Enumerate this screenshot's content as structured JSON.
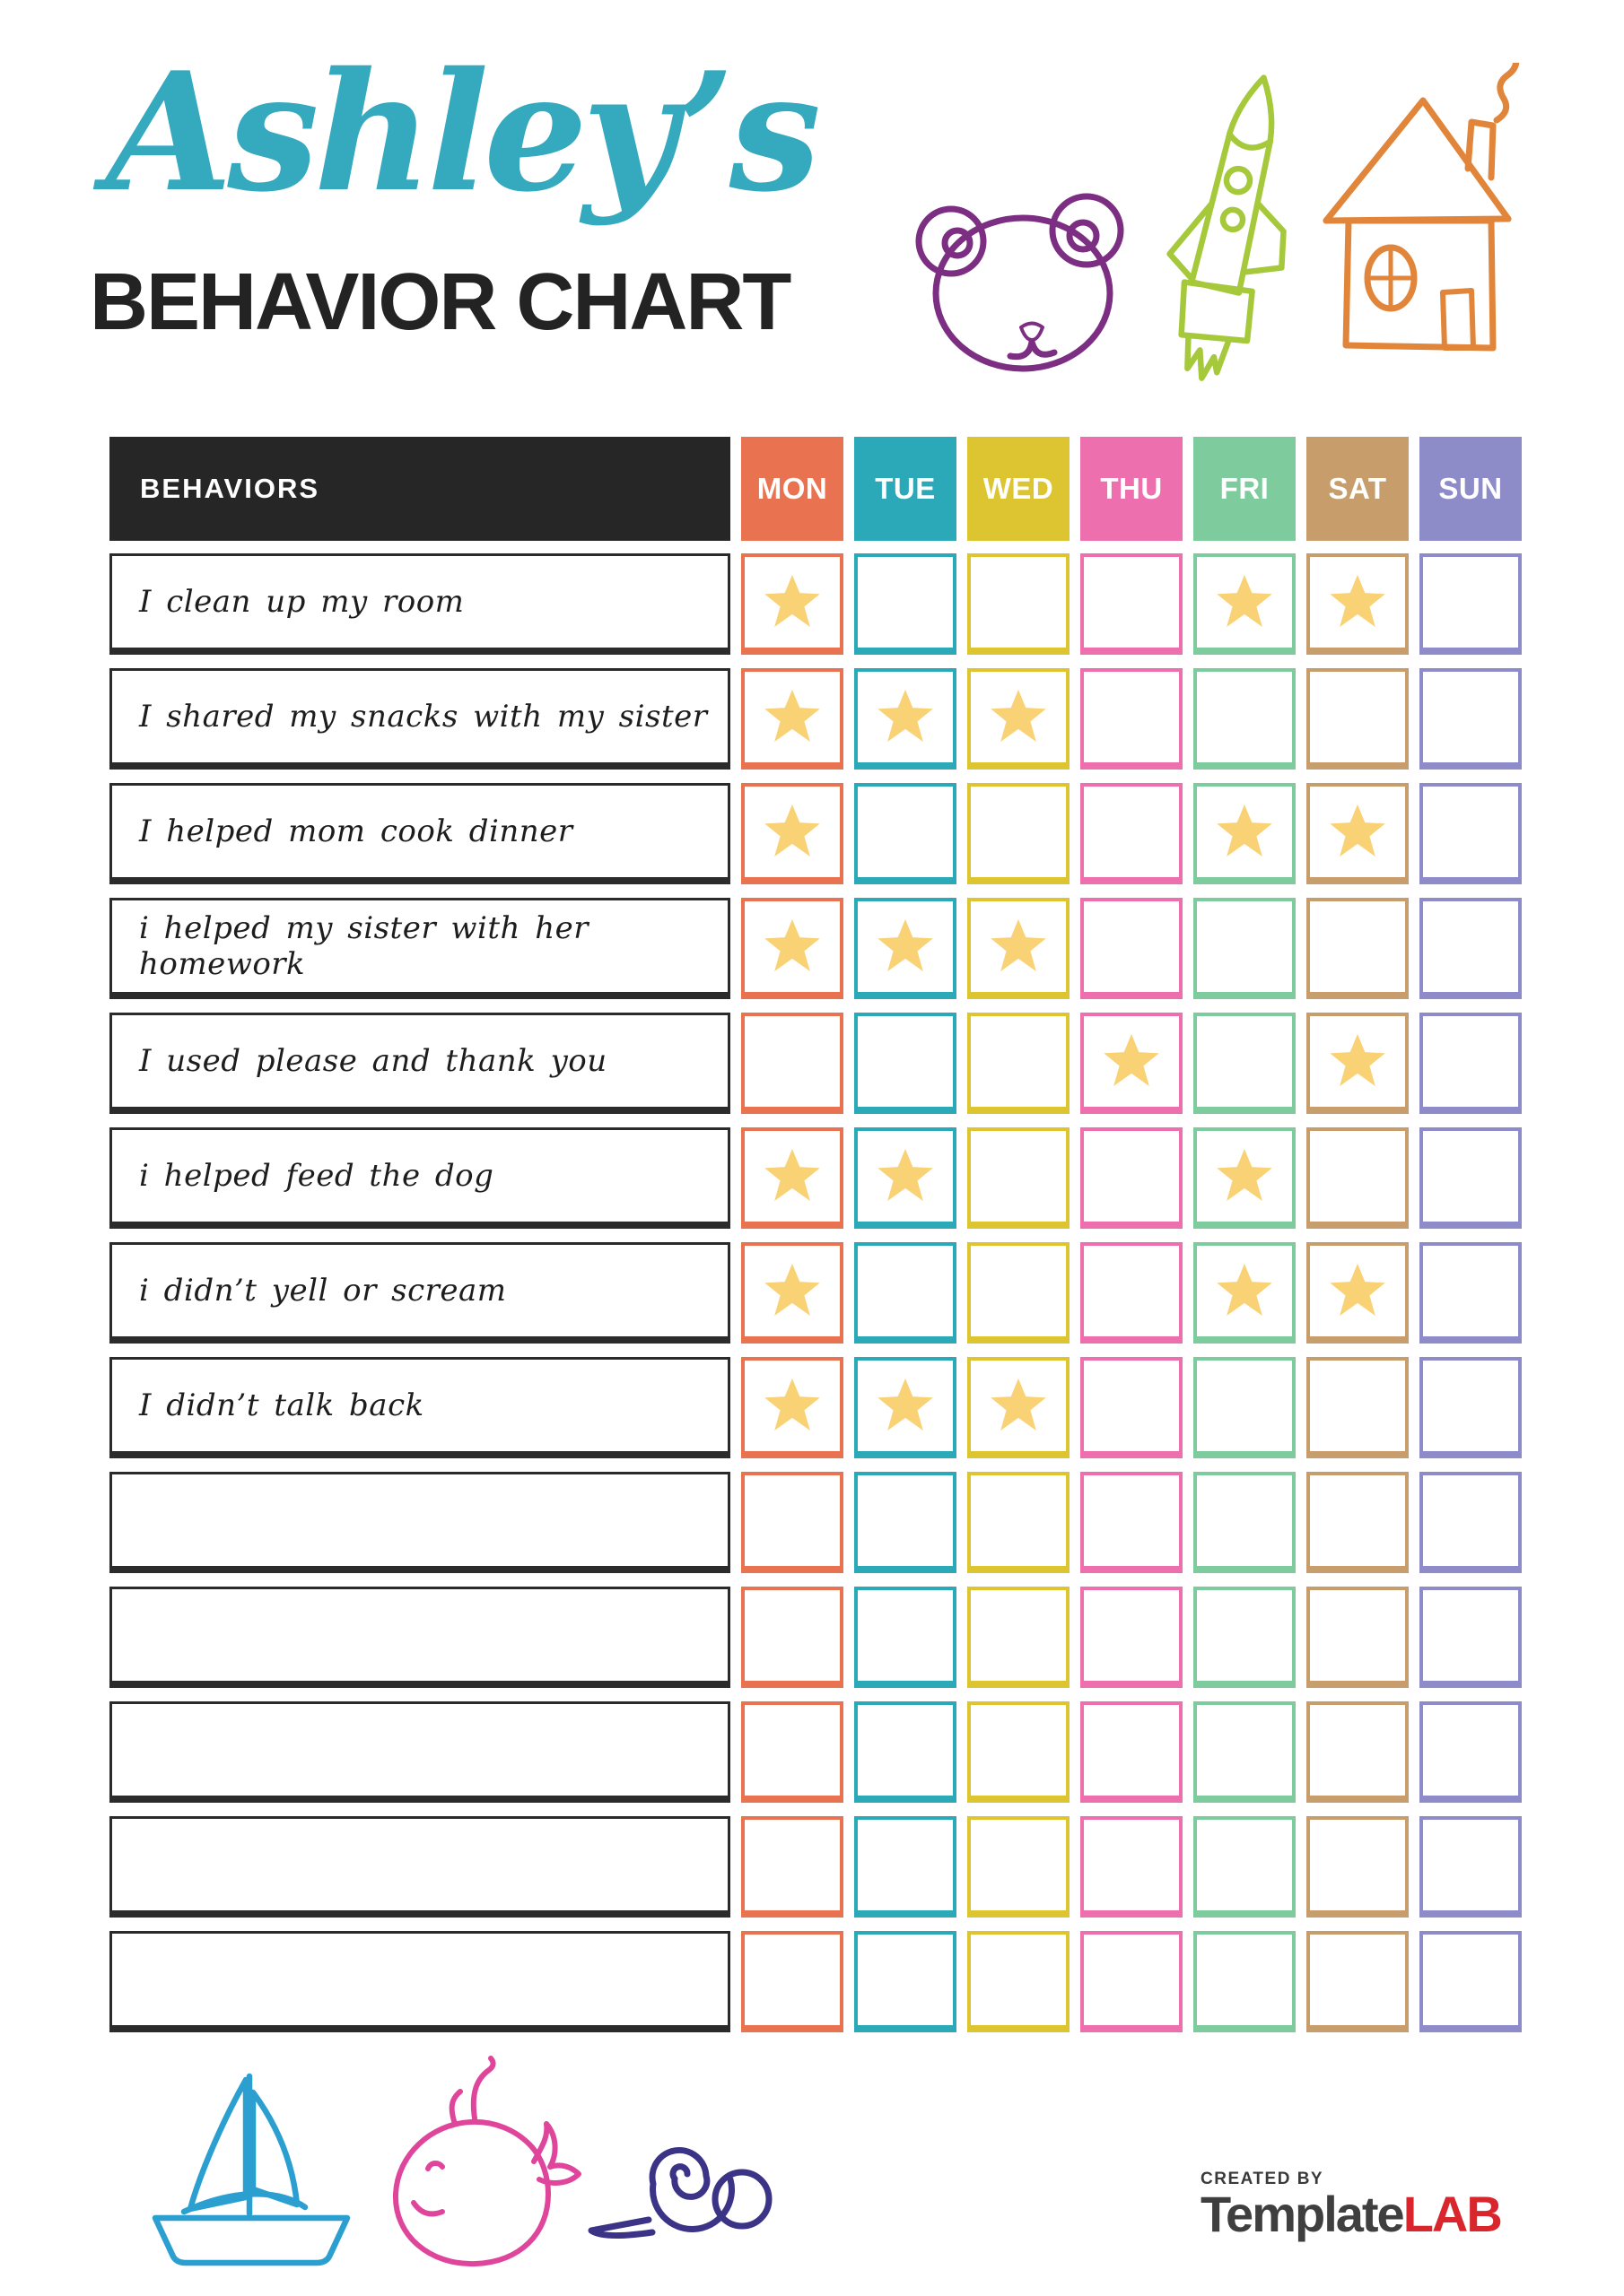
{
  "page": {
    "title_script": "Ashley’s",
    "title_main": "BEHAVIOR CHART",
    "title_script_color": "#35a9bd",
    "title_main_color": "#232323"
  },
  "table": {
    "behaviors_header": "BEHAVIORS",
    "header_bg": "#262626",
    "star_color": "#f8d274",
    "days": [
      {
        "label": "MON",
        "color": "#e97350"
      },
      {
        "label": "TUE",
        "color": "#2ba9b8"
      },
      {
        "label": "WED",
        "color": "#ddc531"
      },
      {
        "label": "THU",
        "color": "#ee6fae"
      },
      {
        "label": "FRI",
        "color": "#7ecb9d"
      },
      {
        "label": "SAT",
        "color": "#c79e6b"
      },
      {
        "label": "SUN",
        "color": "#8e8cc8"
      }
    ],
    "rows": [
      {
        "behavior": "I clean up my room",
        "stars": [
          true,
          false,
          false,
          false,
          true,
          true,
          false
        ]
      },
      {
        "behavior": "I shared my snacks with my sister",
        "stars": [
          true,
          true,
          true,
          false,
          false,
          false,
          false
        ]
      },
      {
        "behavior": "I helped mom cook dinner",
        "stars": [
          true,
          false,
          false,
          false,
          true,
          true,
          false
        ]
      },
      {
        "behavior": "i helped my sister with her homework",
        "stars": [
          true,
          true,
          true,
          false,
          false,
          false,
          false
        ]
      },
      {
        "behavior": "I used please and thank you",
        "stars": [
          false,
          false,
          false,
          true,
          false,
          true,
          false
        ]
      },
      {
        "behavior": "i helped feed the dog",
        "stars": [
          true,
          true,
          false,
          false,
          true,
          false,
          false
        ]
      },
      {
        "behavior": "i didn’t yell or scream",
        "stars": [
          true,
          false,
          false,
          false,
          true,
          true,
          false
        ]
      },
      {
        "behavior": "I didn’t talk back",
        "stars": [
          true,
          true,
          true,
          false,
          false,
          false,
          false
        ]
      },
      {
        "behavior": "",
        "stars": [
          false,
          false,
          false,
          false,
          false,
          false,
          false
        ]
      },
      {
        "behavior": "",
        "stars": [
          false,
          false,
          false,
          false,
          false,
          false,
          false
        ]
      },
      {
        "behavior": "",
        "stars": [
          false,
          false,
          false,
          false,
          false,
          false,
          false
        ]
      },
      {
        "behavior": "",
        "stars": [
          false,
          false,
          false,
          false,
          false,
          false,
          false
        ]
      },
      {
        "behavior": "",
        "stars": [
          false,
          false,
          false,
          false,
          false,
          false,
          false
        ]
      }
    ]
  },
  "decorations": {
    "bear_color": "#7c2e82",
    "rocket_color": "#a5c93b",
    "house_color": "#e1853a",
    "sailboat_color": "#2c9fd1",
    "whale_color": "#e0459c",
    "snail_color": "#3a3386"
  },
  "footer": {
    "created_by": "CREATED BY",
    "brand_part1": "Template",
    "brand_part2": "LAB",
    "brand_accent_color": "#d8262c"
  }
}
